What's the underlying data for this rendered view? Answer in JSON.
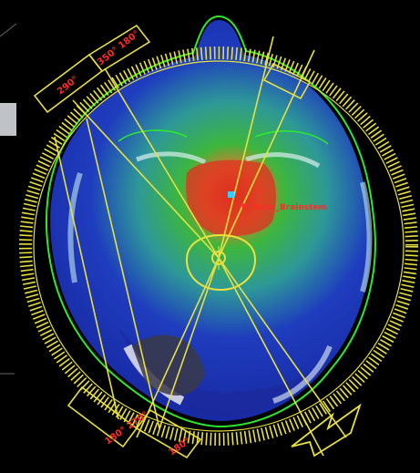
{
  "viewer": {
    "poi_label": "P_Dmin_Brainstem",
    "beam_label_1": "290°",
    "beam_label_2": "350° 180°",
    "beam_label_3": "180° 270°",
    "beam_label_4": "180°",
    "colors": {
      "background": "#000000",
      "contour": "#2ee82e",
      "beam": "#e8e040",
      "dose_high": "#e03020",
      "dose_mid": "#40c040",
      "dose_low": "#2040c8",
      "poi_text": "#ff2a2a",
      "poi_marker": "#30d0ff"
    }
  }
}
